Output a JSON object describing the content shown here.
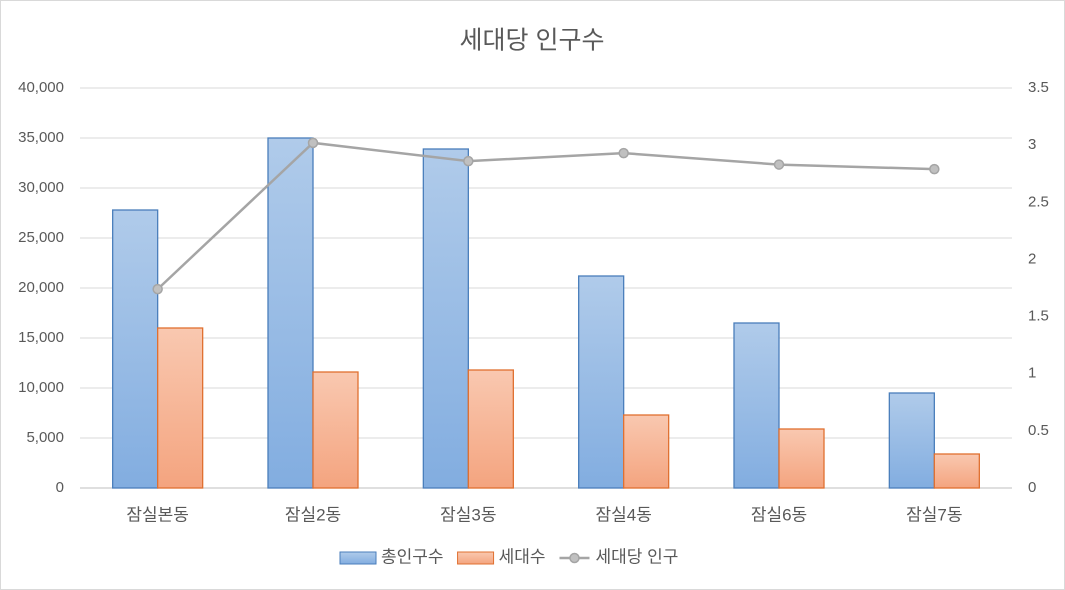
{
  "chart_data": {
    "type": "bar-line",
    "title": "세대당 인구수",
    "categories": [
      "잠실본동",
      "잠실2동",
      "잠실3동",
      "잠실4동",
      "잠실6동",
      "잠실7동"
    ],
    "series": [
      {
        "name": "총인구수",
        "type": "bar",
        "color": "#8fb6e4",
        "values": [
          27800,
          35000,
          33900,
          21200,
          16500,
          9500
        ]
      },
      {
        "name": "세대수",
        "type": "bar",
        "color": "#f6b092",
        "values": [
          16000,
          11600,
          11800,
          7300,
          5900,
          3400
        ]
      },
      {
        "name": "세대당 인구",
        "type": "line",
        "axis": "y2",
        "color": "#a5a5a5",
        "values": [
          1.74,
          3.02,
          2.86,
          2.93,
          2.83,
          2.79
        ]
      }
    ],
    "ylim": [
      0,
      40000
    ],
    "yticks": [
      0,
      {
        "value": 5000,
        "label": "5,000"
      },
      {
        "value": 10000,
        "label": "10,000"
      },
      {
        "value": 15000,
        "label": "15,000"
      },
      {
        "value": 20000,
        "label": "20,000"
      },
      {
        "value": 25000,
        "label": "25,000"
      },
      {
        "value": 30000,
        "label": "30,000"
      },
      {
        "value": 35000,
        "label": "35,000"
      },
      {
        "value": 40000,
        "label": "40,000"
      }
    ],
    "y2lim": [
      0,
      3.5
    ],
    "y2ticks": [
      0,
      0.5,
      1,
      1.5,
      2,
      2.5,
      3,
      3.5
    ],
    "grid": true,
    "legend": "bottom"
  }
}
